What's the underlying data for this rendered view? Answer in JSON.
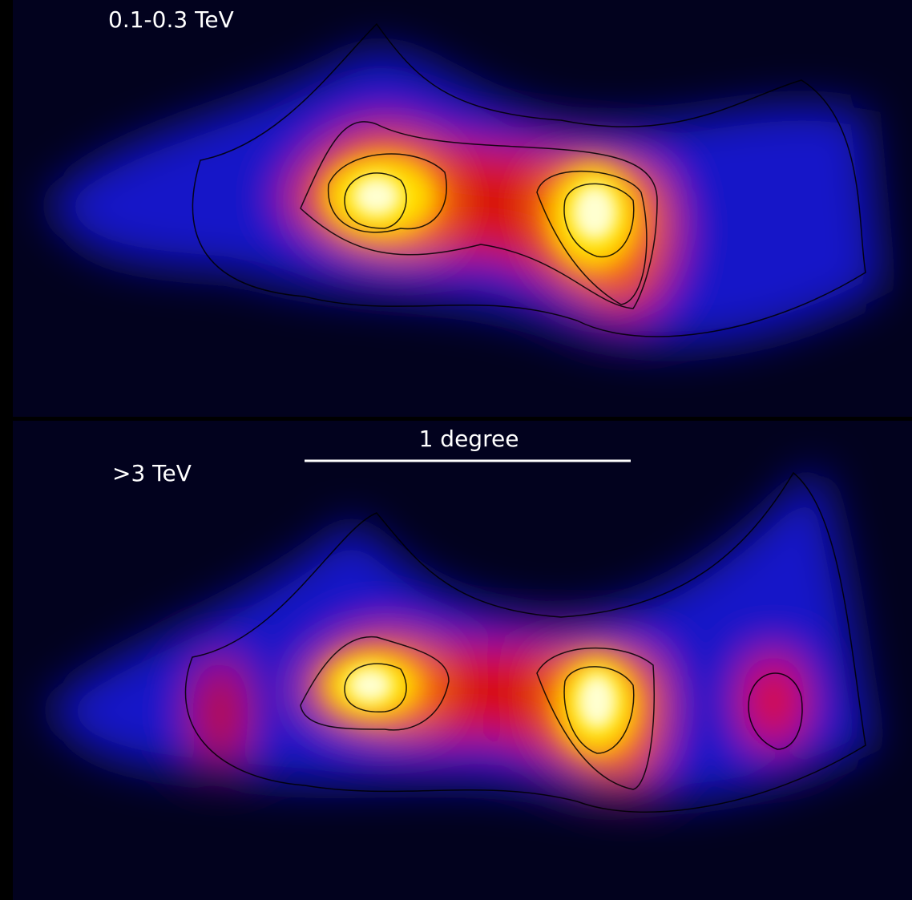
{
  "panels": [
    {
      "label": "0.1-0.3 TeV"
    },
    {
      "label": ">3 TeV"
    }
  ],
  "scale_bar": {
    "label": "1 degree"
  }
}
